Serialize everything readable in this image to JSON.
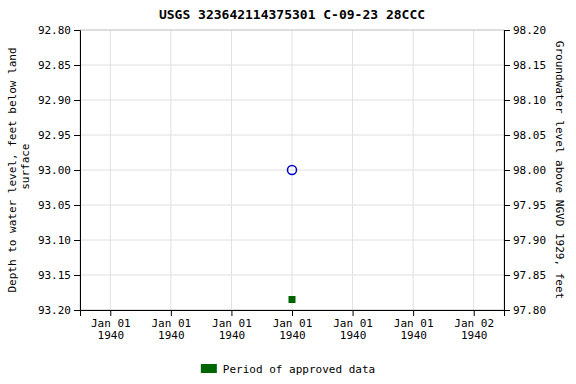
{
  "chart_data": {
    "type": "scatter",
    "title": "USGS 323642114375301 C-09-23 28CCC",
    "ylabel": "Depth to water level, feet below land\n surface",
    "y2label": "Groundwater level above NGVD 1929, feet",
    "categories": [
      "Jan 01\n1940",
      "Jan 01\n1940",
      "Jan 01\n1940",
      "Jan 01\n1940",
      "Jan 01\n1940",
      "Jan 01\n1940",
      "Jan 02\n1940"
    ],
    "series": [
      {
        "color": "#0000cc",
        "marker": "open-circle",
        "values": [
          null,
          null,
          null,
          93.0,
          null,
          null,
          null
        ]
      },
      {
        "name": "Period of approved data",
        "color": "#006400",
        "marker": "square",
        "values": [
          null,
          null,
          null,
          93.185,
          null,
          null,
          null
        ]
      }
    ],
    "ylim": [
      93.2,
      92.8
    ],
    "yticks": [
      {
        "value": 92.8,
        "label": "92.80"
      },
      92.85,
      {
        "value": 92.9,
        "label": "92.90"
      },
      92.95,
      {
        "value": 93.0,
        "label": "93.00"
      },
      93.05,
      {
        "value": 93.1,
        "label": "93.10"
      },
      93.15,
      {
        "value": 93.2,
        "label": "93.20"
      }
    ],
    "y2lim": [
      97.8,
      98.2
    ],
    "y2ticks": [
      {
        "value": 98.2,
        "label": "98.20"
      },
      98.15,
      {
        "value": 98.1,
        "label": "98.10"
      },
      98.05,
      {
        "value": 98.0,
        "label": "98.00"
      },
      97.95,
      {
        "value": 97.9,
        "label": "97.90"
      },
      97.85,
      {
        "value": 97.8,
        "label": "97.80"
      }
    ],
    "grid": true,
    "legend": "bottom"
  }
}
